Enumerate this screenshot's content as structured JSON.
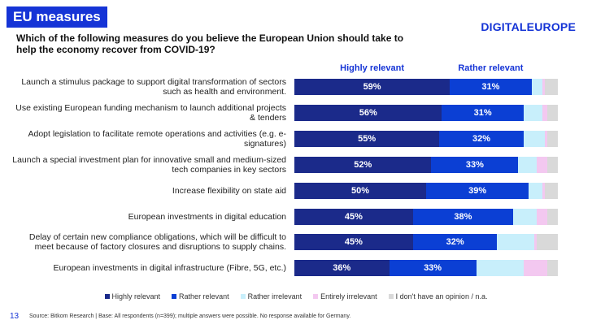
{
  "slide": {
    "badge": "EU measures",
    "logo": "DIGITALEUROPE",
    "page_number": "13",
    "source": "Source: Bitkom Research | Base: All respondents (n=399); multiple answers were possible. No response available for Germany."
  },
  "chart_data": {
    "type": "bar",
    "orientation": "horizontal",
    "stacked": true,
    "title": "Which of the following measures do you believe the European Union should take to help the economy recover from COVID-19?",
    "categories": [
      "Launch a stimulus package to support digital transformation of sectors such as health and environment.",
      "Use existing European funding mechanism to launch additional projects & tenders",
      "Adopt legislation to facilitate remote operations and activities (e.g. e-signatures)",
      "Launch a special investment plan for innovative small and medium-sized tech companies in key sectors",
      "Increase flexibility on state aid",
      "European investments in digital education",
      "Delay of certain new compliance obligations, which will be difficult to meet because of factory closures and disruptions to supply chains.",
      "European investments in digital infrastructure (Fibre, 5G, etc.)"
    ],
    "xlim": [
      0,
      100
    ],
    "legend": "bottom",
    "series": [
      {
        "name": "Highly relevant",
        "color": "#1b2a8a",
        "values": [
          59,
          56,
          55,
          52,
          50,
          45,
          45,
          36
        ],
        "value_labels": [
          "59%",
          "56%",
          "55%",
          "52%",
          "50%",
          "45%",
          "45%",
          "36%"
        ]
      },
      {
        "name": "Rather relevant",
        "color": "#0b3fd4",
        "values": [
          31,
          31,
          32,
          33,
          39,
          38,
          32,
          33
        ],
        "value_labels": [
          "31%",
          "31%",
          "32%",
          "33%",
          "39%",
          "38%",
          "32%",
          "33%"
        ]
      },
      {
        "name": "Rather irrelevant",
        "color": "#c8effb",
        "values": [
          4,
          7,
          8,
          7,
          5,
          9,
          14,
          18
        ]
      },
      {
        "name": "Entirely irrelevant",
        "color": "#f3c8f0",
        "values": [
          1,
          2,
          1,
          4,
          1,
          4,
          1,
          9
        ]
      },
      {
        "name": "I don't have an opinion / n.a.",
        "color": "#d9d9d9",
        "values": [
          5,
          4,
          4,
          4,
          5,
          4,
          8,
          4
        ]
      }
    ]
  }
}
